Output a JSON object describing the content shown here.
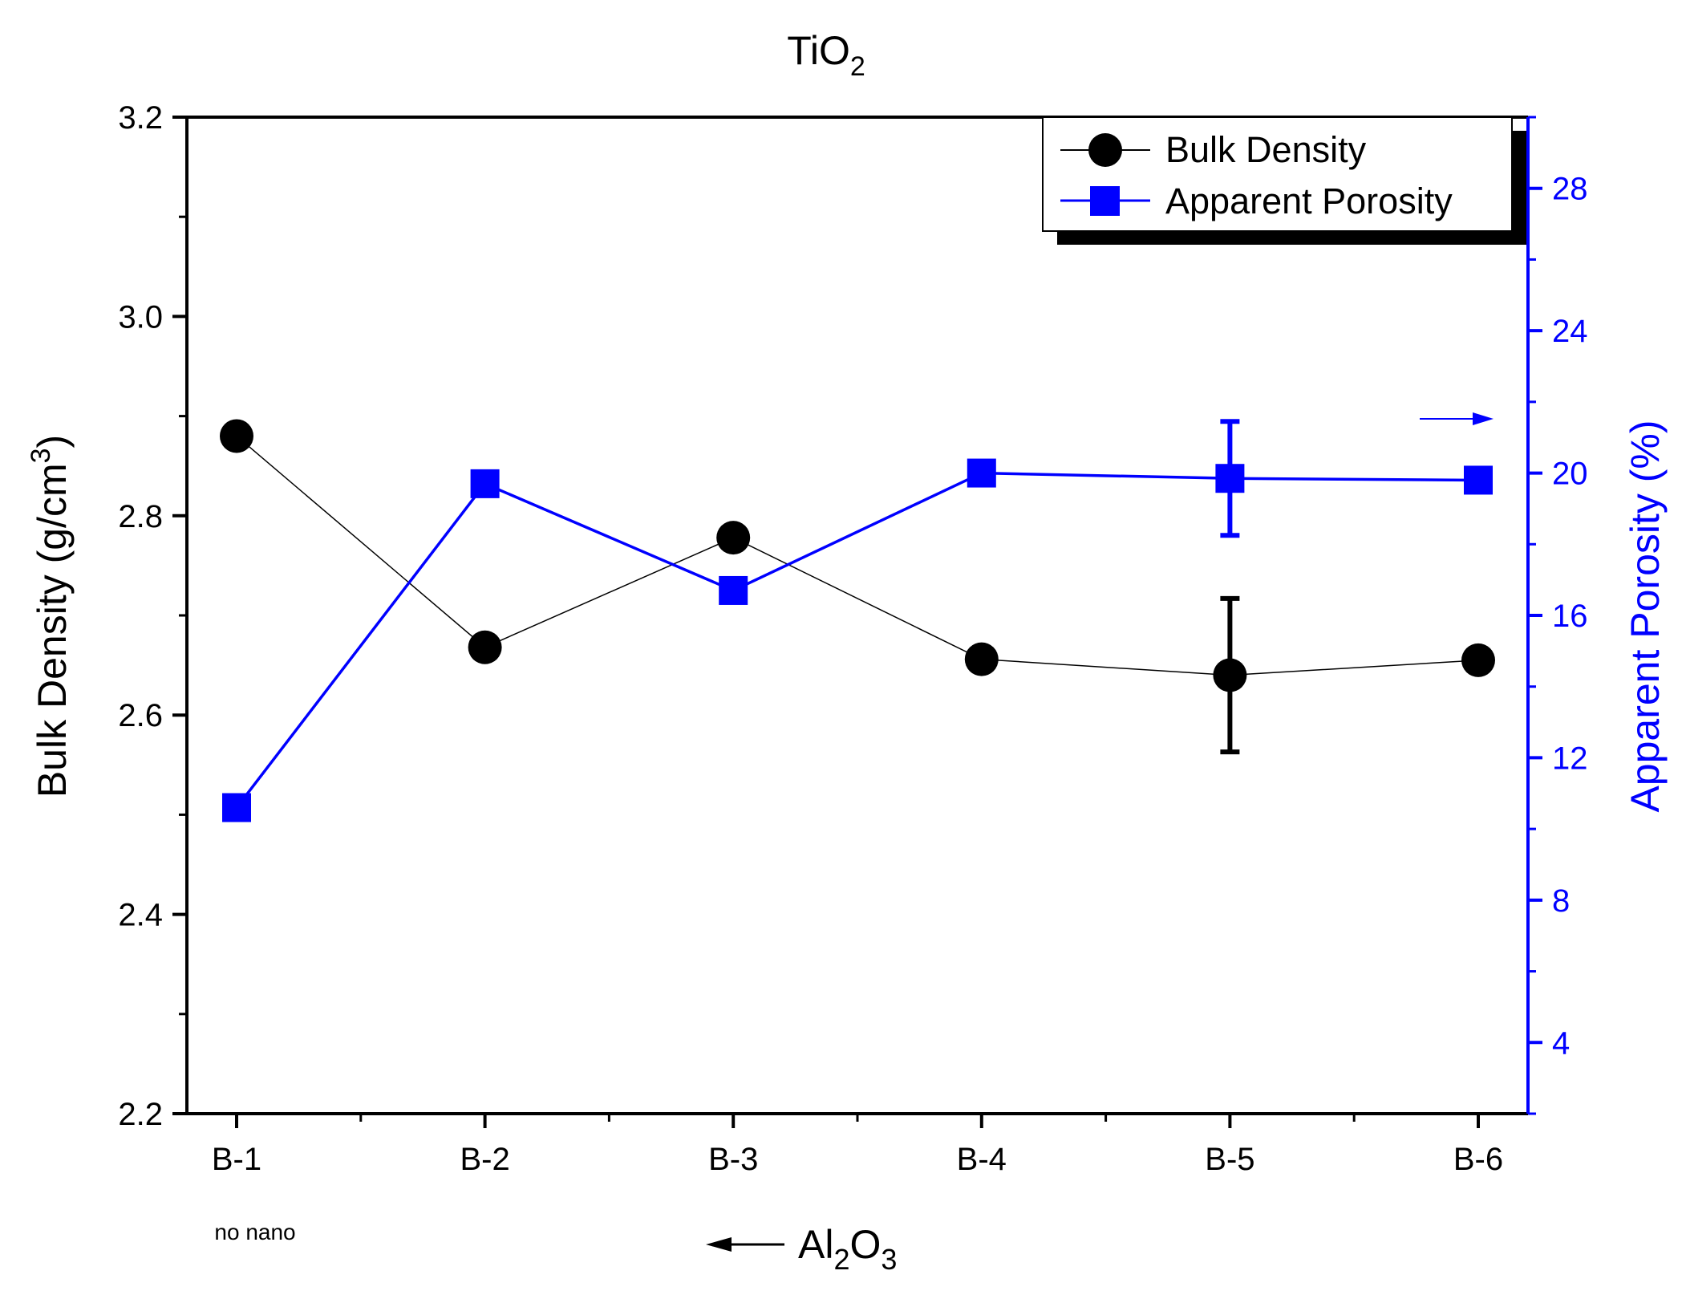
{
  "chart_data": {
    "type": "line",
    "title": "TiO",
    "title_sub": "2",
    "categories": [
      "B-1",
      "B-2",
      "B-3",
      "B-4",
      "B-5",
      "B-6"
    ],
    "category_note": "no nano",
    "xlabel_arrow_text": {
      "base1": "Al",
      "sub1": "2",
      "base2": "O",
      "sub2": "3"
    },
    "ylabel_left": {
      "text": "Bulk Density (g/cm",
      "sup": "3",
      "close": ")"
    },
    "ylabel_right": "Apparent Porosity (%)",
    "y_left": {
      "min": 2.2,
      "max": 3.2,
      "major": [
        2.2,
        2.4,
        2.6,
        2.8,
        3.0,
        3.2
      ],
      "tick_labels": [
        "2.2",
        "2.4",
        "2.6",
        "2.8",
        "3.0",
        "3.2"
      ]
    },
    "y_right": {
      "min": 2,
      "max": 30,
      "major": [
        4,
        8,
        12,
        16,
        20,
        24,
        28
      ],
      "tick_labels": [
        "4",
        "8",
        "12",
        "16",
        "20",
        "24",
        "28"
      ]
    },
    "series": [
      {
        "name": "Bulk Density",
        "axis": "left",
        "marker": "circle",
        "color": "#000000",
        "values": [
          2.88,
          2.668,
          2.778,
          2.656,
          2.64,
          2.655
        ],
        "errors": [
          null,
          null,
          null,
          null,
          0.077,
          null
        ]
      },
      {
        "name": "Apparent Porosity",
        "axis": "right",
        "marker": "square",
        "color": "#0000ff",
        "values": [
          10.6,
          19.7,
          16.7,
          20.0,
          19.85,
          19.8
        ],
        "errors": [
          null,
          null,
          null,
          null,
          1.6,
          null
        ]
      }
    ],
    "legend_position": "top-right"
  },
  "colors": {
    "left_axis": "#000000",
    "right_axis": "#0000ff"
  }
}
